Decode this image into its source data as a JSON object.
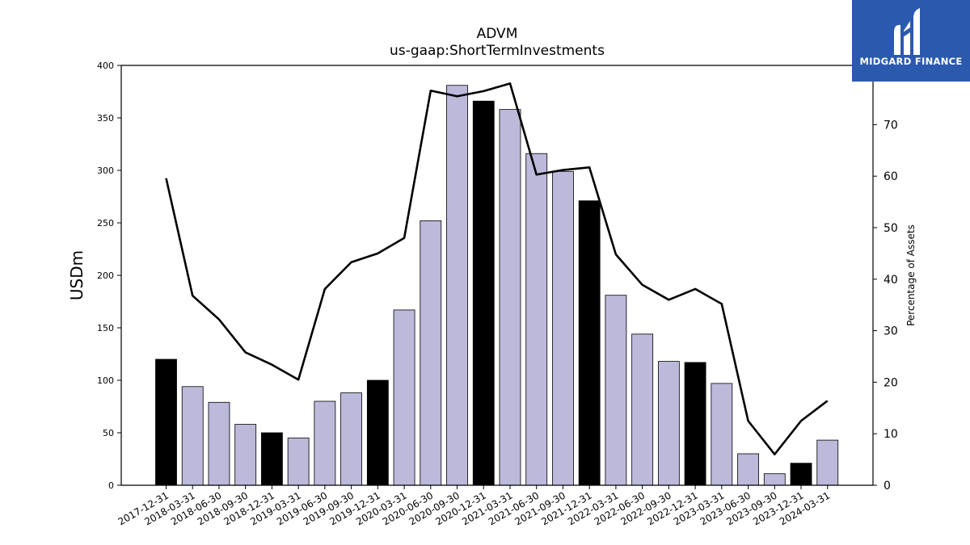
{
  "chart_data": {
    "type": "bar",
    "title": "ADVM",
    "subtitle": "us-gaap:ShortTermInvestments",
    "ylabel": "USDm",
    "y2label": "Percentage of Assets",
    "ylim": [
      0,
      400
    ],
    "y2lim": [
      0,
      81.5
    ],
    "yticks": [
      0,
      50,
      100,
      150,
      200,
      250,
      300,
      350,
      400
    ],
    "y2ticks": [
      0,
      10,
      20,
      30,
      40,
      50,
      60,
      70
    ],
    "categories": [
      "2017-12-31",
      "2018-03-31",
      "2018-06-30",
      "2018-09-30",
      "2018-12-31",
      "2019-03-31",
      "2019-06-30",
      "2019-09-30",
      "2019-12-31",
      "2020-03-31",
      "2020-06-30",
      "2020-09-30",
      "2020-12-31",
      "2021-03-31",
      "2021-06-30",
      "2021-09-30",
      "2021-12-31",
      "2022-03-31",
      "2022-06-30",
      "2022-09-30",
      "2022-12-31",
      "2023-03-31",
      "2023-06-30",
      "2023-09-30",
      "2023-12-31",
      "2024-03-31"
    ],
    "series": [
      {
        "type": "bar",
        "values": [
          120,
          94,
          79,
          58,
          50,
          45,
          80,
          88,
          100,
          167,
          252,
          381,
          366,
          358,
          316,
          299,
          271,
          181,
          144,
          118,
          117,
          97,
          30,
          11,
          21,
          43
        ],
        "highlight": [
          true,
          false,
          false,
          false,
          true,
          false,
          false,
          false,
          true,
          false,
          false,
          false,
          true,
          false,
          false,
          false,
          true,
          false,
          false,
          false,
          true,
          false,
          false,
          false,
          true,
          false
        ],
        "color": "#bcb9da",
        "highlight_color": "#000000"
      },
      {
        "type": "line",
        "axis": "right",
        "values": [
          59.6,
          36.8,
          32.2,
          25.8,
          23.4,
          20.5,
          38.1,
          43.3,
          45.0,
          48.0,
          76.6,
          75.5,
          76.5,
          78.0,
          60.3,
          61.2,
          61.7,
          44.8,
          38.9,
          36.0,
          38.1,
          35.2,
          12.5,
          6.0,
          12.5,
          16.4
        ],
        "color": "#000000"
      }
    ]
  },
  "logo": {
    "text": "MIDGARD FINANCE",
    "bg": "#2b59ae"
  }
}
